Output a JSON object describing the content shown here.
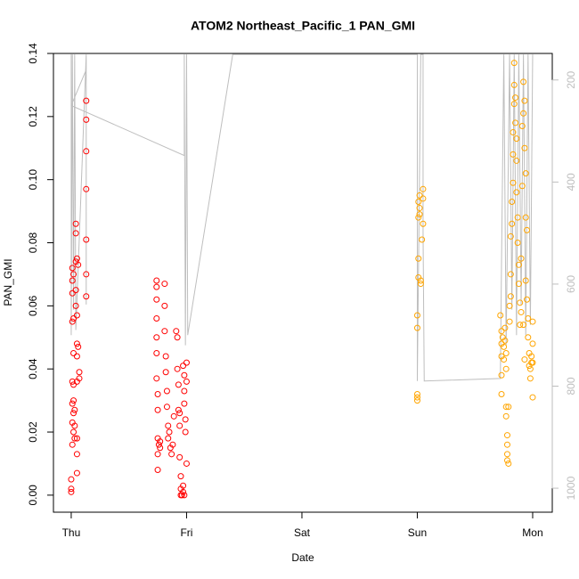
{
  "chart_data": {
    "type": "scatter",
    "title": "ATOM2 Northeast_Pacific_1 PAN_GMI",
    "x_label": "Date",
    "y_label": "PAN_GMI",
    "xlim": [
      -0.154,
      4.17
    ],
    "ylim": [
      -0.0054,
      0.14
    ],
    "y2lim": [
      1047,
      148
    ],
    "xticks": [
      {
        "value": 0,
        "label": "Thu"
      },
      {
        "value": 1,
        "label": "Fri"
      },
      {
        "value": 2,
        "label": "Sat"
      },
      {
        "value": 3,
        "label": "Sun"
      },
      {
        "value": 4,
        "label": "Mon"
      }
    ],
    "yticks": [
      {
        "value": 0,
        "label": "0.00"
      },
      {
        "value": 0.02,
        "label": "0.02"
      },
      {
        "value": 0.04,
        "label": "0.04"
      },
      {
        "value": 0.06,
        "label": "0.06"
      },
      {
        "value": 0.08,
        "label": "0.08"
      },
      {
        "value": 0.1,
        "label": "0.10"
      },
      {
        "value": 0.12,
        "label": "0.12"
      },
      {
        "value": 0.14,
        "label": "0.14"
      }
    ],
    "y2ticks": [
      200,
      400,
      600,
      800,
      1000
    ],
    "y2_color": "#bebebe",
    "series": [
      {
        "color": "#ff0000",
        "x": [
          0.0,
          0.0,
          0.0,
          0.01,
          0.01,
          0.01,
          0.01,
          0.01,
          0.01,
          0.01,
          0.01,
          0.02,
          0.02,
          0.02,
          0.02,
          0.02,
          0.02,
          0.02,
          0.03,
          0.03,
          0.03,
          0.04,
          0.04,
          0.04,
          0.04,
          0.04,
          0.05,
          0.05,
          0.05,
          0.05,
          0.05,
          0.05,
          0.05,
          0.05,
          0.06,
          0.06,
          0.07,
          0.07,
          0.13,
          0.13,
          0.13,
          0.13,
          0.13,
          0.13,
          0.13,
          0.74,
          0.74,
          0.74,
          0.74,
          0.74,
          0.74,
          0.74,
          0.75,
          0.75,
          0.75,
          0.75,
          0.75,
          0.76,
          0.77,
          0.77,
          0.81,
          0.81,
          0.81,
          0.82,
          0.82,
          0.83,
          0.83,
          0.84,
          0.84,
          0.85,
          0.86,
          0.87,
          0.88,
          0.89,
          0.91,
          0.92,
          0.92,
          0.93,
          0.93,
          0.94,
          0.94,
          0.94,
          0.95,
          0.95,
          0.95,
          0.96,
          0.97,
          0.97,
          0.97,
          0.98,
          0.98,
          0.98,
          0.99,
          0.99,
          1.0,
          1.0,
          1.0,
          0.98
        ],
        "values": [
          0.001,
          0.002,
          0.005,
          0.016,
          0.023,
          0.029,
          0.036,
          0.055,
          0.064,
          0.068,
          0.072,
          0.07,
          0.056,
          0.045,
          0.035,
          0.03,
          0.026,
          0.02,
          0.018,
          0.022,
          0.027,
          0.06,
          0.065,
          0.083,
          0.086,
          0.074,
          0.075,
          0.057,
          0.048,
          0.044,
          0.036,
          0.018,
          0.013,
          0.007,
          0.047,
          0.073,
          0.039,
          0.037,
          0.125,
          0.119,
          0.109,
          0.097,
          0.081,
          0.07,
          0.063,
          0.068,
          0.066,
          0.062,
          0.056,
          0.05,
          0.045,
          0.037,
          0.032,
          0.027,
          0.018,
          0.013,
          0.008,
          0.016,
          0.015,
          0.017,
          0.067,
          0.06,
          0.052,
          0.044,
          0.039,
          0.033,
          0.028,
          0.022,
          0.018,
          0.02,
          0.015,
          0.013,
          0.016,
          0.025,
          0.052,
          0.05,
          0.04,
          0.035,
          0.027,
          0.026,
          0.022,
          0.012,
          0.006,
          0.002,
          0.0,
          0.0,
          0.001,
          0.003,
          0.041,
          0.038,
          0.033,
          0.029,
          0.024,
          0.02,
          0.042,
          0.036,
          0.01,
          0.0
        ]
      },
      {
        "color": "#ffa500",
        "x": [
          3.0,
          3.0,
          3.0,
          3.0,
          3.0,
          3.01,
          3.01,
          3.01,
          3.01,
          3.02,
          3.02,
          3.02,
          3.03,
          3.03,
          3.04,
          3.05,
          3.05,
          3.05,
          3.72,
          3.73,
          3.73,
          3.73,
          3.73,
          3.73,
          3.74,
          3.75,
          3.75,
          3.76,
          3.76,
          3.77,
          3.77,
          3.77,
          3.77,
          3.78,
          3.78,
          3.78,
          3.78,
          3.79,
          3.79,
          3.8,
          3.8,
          3.81,
          3.81,
          3.81,
          3.82,
          3.82,
          3.83,
          3.83,
          3.83,
          3.84,
          3.84,
          3.84,
          3.85,
          3.85,
          3.86,
          3.86,
          3.86,
          3.87,
          3.87,
          3.88,
          3.88,
          3.89,
          3.89,
          3.9,
          3.9,
          3.91,
          3.91,
          3.92,
          3.92,
          3.93,
          3.93,
          3.94,
          3.94,
          3.95,
          3.95,
          3.96,
          3.96,
          3.97,
          3.97,
          3.98,
          3.98,
          3.99,
          3.99,
          4.0,
          4.0,
          4.0,
          4.0,
          3.92,
          3.93,
          3.94
        ],
        "values": [
          0.031,
          0.03,
          0.032,
          0.053,
          0.057,
          0.069,
          0.075,
          0.088,
          0.093,
          0.095,
          0.091,
          0.089,
          0.067,
          0.068,
          0.081,
          0.086,
          0.094,
          0.097,
          0.057,
          0.052,
          0.048,
          0.044,
          0.038,
          0.032,
          0.05,
          0.047,
          0.043,
          0.053,
          0.049,
          0.045,
          0.04,
          0.028,
          0.025,
          0.019,
          0.016,
          0.013,
          0.011,
          0.01,
          0.028,
          0.055,
          0.06,
          0.063,
          0.07,
          0.082,
          0.086,
          0.093,
          0.099,
          0.108,
          0.115,
          0.124,
          0.13,
          0.137,
          0.126,
          0.118,
          0.113,
          0.106,
          0.096,
          0.088,
          0.08,
          0.073,
          0.067,
          0.061,
          0.054,
          0.058,
          0.075,
          0.098,
          0.117,
          0.121,
          0.131,
          0.125,
          0.11,
          0.102,
          0.088,
          0.084,
          0.062,
          0.056,
          0.05,
          0.045,
          0.041,
          0.037,
          0.04,
          0.042,
          0.044,
          0.048,
          0.055,
          0.042,
          0.031,
          0.054,
          0.043,
          0.068
        ]
      },
      {
        "color": "#bebebe",
        "axis": "y2",
        "type": "line",
        "x": [
          0.0,
          0.0,
          0.01,
          0.02,
          0.03,
          0.04,
          0.13,
          0.13,
          0.13,
          0.0,
          0.98,
          0.98,
          0.99,
          1.0,
          1.01,
          1.4,
          3.0,
          3.0,
          3.03,
          3.05,
          3.05,
          3.06,
          3.72,
          3.73,
          3.75,
          3.77,
          3.8,
          3.82,
          3.84,
          3.86,
          3.88,
          3.9,
          3.92,
          3.94,
          3.96,
          3.98,
          4.0
        ],
        "values": [
          150,
          700,
          150,
          650,
          150,
          690,
          150,
          640,
          180,
          250,
          348,
          150,
          720,
          150,
          700,
          150,
          150,
          790,
          150,
          150,
          500,
          790,
          785,
          560,
          150,
          720,
          150,
          650,
          150,
          700,
          150,
          640,
          150,
          700,
          150,
          680,
          150
        ]
      }
    ]
  }
}
